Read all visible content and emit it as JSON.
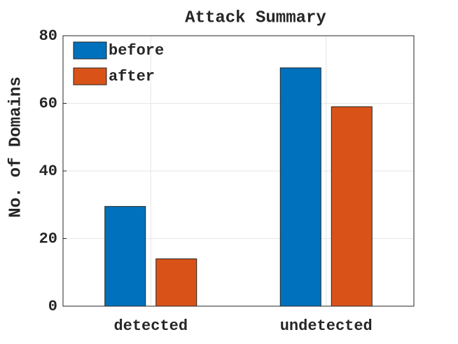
{
  "chart_data": {
    "type": "bar",
    "title": "Attack Summary",
    "ylabel": "No. of Domains",
    "categories": [
      "detected",
      "undetected"
    ],
    "series": [
      {
        "name": "before",
        "color": "#0072bd",
        "values": [
          29.5,
          70.5
        ]
      },
      {
        "name": "after",
        "color": "#d95319",
        "values": [
          14,
          59
        ]
      }
    ],
    "ylim": [
      0,
      80
    ],
    "yticks": [
      0,
      20,
      40,
      60,
      80
    ],
    "grid": true,
    "legend": "upper-left"
  }
}
